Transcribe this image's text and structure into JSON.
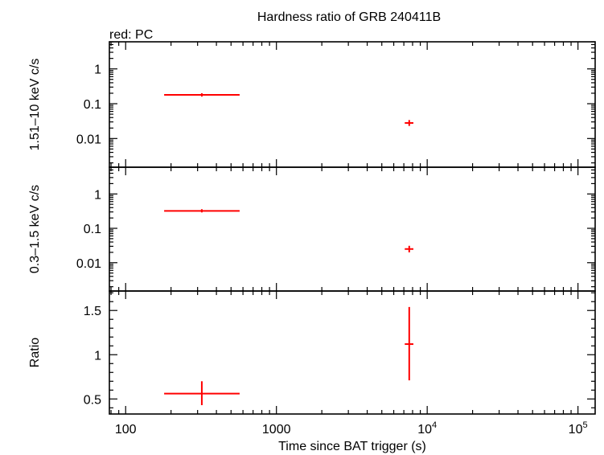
{
  "title": "Hardness ratio of GRB 240411B",
  "legend_note": "red: PC",
  "colors": {
    "series": "#ff0000",
    "axes": "#000000"
  },
  "chart_data": [
    {
      "type": "scatter",
      "panel": "hard-band",
      "ylabel": "1.51–10 keV c/s",
      "yscale": "log",
      "ylim": [
        0.0015,
        6
      ],
      "yticks": [
        {
          "v": 0.01,
          "label": "0.01"
        },
        {
          "v": 0.1,
          "label": "0.1"
        },
        {
          "v": 1,
          "label": "1"
        }
      ],
      "series": [
        {
          "color": "#ff0000",
          "points": [
            {
              "x": 320,
              "xlo": 180,
              "xhi": 570,
              "y": 0.18,
              "ylo": 0.16,
              "yhi": 0.2
            },
            {
              "x": 7600,
              "xlo": 7100,
              "xhi": 8100,
              "y": 0.028,
              "ylo": 0.023,
              "yhi": 0.034
            }
          ]
        }
      ]
    },
    {
      "type": "scatter",
      "panel": "soft-band",
      "ylabel": "0.3–1.5 keV c/s",
      "yscale": "log",
      "ylim": [
        0.0015,
        6
      ],
      "yticks": [
        {
          "v": 0.01,
          "label": "0.01"
        },
        {
          "v": 0.1,
          "label": "0.1"
        },
        {
          "v": 1,
          "label": "1"
        }
      ],
      "series": [
        {
          "color": "#ff0000",
          "points": [
            {
              "x": 320,
              "xlo": 180,
              "xhi": 570,
              "y": 0.32,
              "ylo": 0.29,
              "yhi": 0.36
            },
            {
              "x": 7600,
              "xlo": 7100,
              "xhi": 8100,
              "y": 0.025,
              "ylo": 0.02,
              "yhi": 0.031
            }
          ]
        }
      ]
    },
    {
      "type": "scatter",
      "panel": "ratio",
      "ylabel": "Ratio",
      "xlabel": "Time since BAT trigger (s)",
      "yscale": "linear",
      "ylim": [
        0.33,
        1.72
      ],
      "yticks": [
        {
          "v": 0.5,
          "label": "0.5"
        },
        {
          "v": 1,
          "label": "1"
        },
        {
          "v": 1.5,
          "label": "1.5"
        }
      ],
      "series": [
        {
          "color": "#ff0000",
          "points": [
            {
              "x": 320,
              "xlo": 180,
              "xhi": 570,
              "y": 0.56,
              "ylo": 0.43,
              "yhi": 0.7
            },
            {
              "x": 7600,
              "xlo": 7100,
              "xhi": 8100,
              "y": 1.12,
              "ylo": 0.71,
              "yhi": 1.54
            }
          ]
        }
      ]
    }
  ],
  "x_axis": {
    "scale": "log",
    "xlim": [
      78,
      130000
    ],
    "ticks": [
      {
        "v": 100,
        "base": "100",
        "exp": ""
      },
      {
        "v": 1000,
        "base": "1000",
        "exp": ""
      },
      {
        "v": 10000,
        "base": "10",
        "exp": "4"
      },
      {
        "v": 100000,
        "base": "10",
        "exp": "5"
      }
    ]
  }
}
